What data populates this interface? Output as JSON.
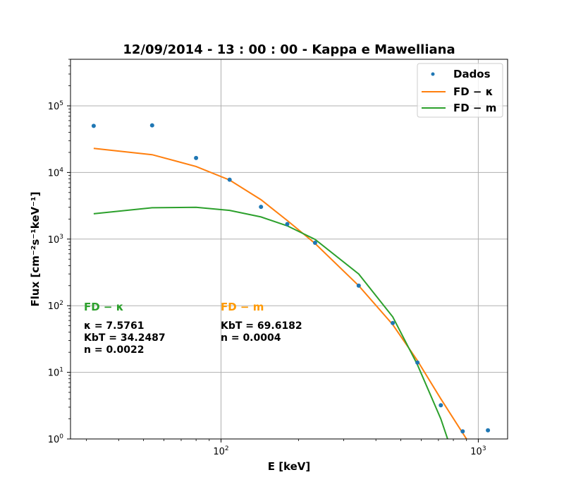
{
  "chart_data": {
    "type": "line",
    "title": "12/09/2014 - 13 : 00 : 00 - Kappa e Mawelliana",
    "xlabel": "E [keV]",
    "ylabel": "Flux [cm⁻²s⁻¹keV⁻¹]",
    "xscale": "log",
    "yscale": "log",
    "xlim": [
      26,
      1300
    ],
    "ylim": [
      1,
      500000
    ],
    "x_ticks": [
      {
        "value": 100,
        "base": "10",
        "exp": "2"
      },
      {
        "value": 1000,
        "base": "10",
        "exp": "3"
      }
    ],
    "y_ticks": [
      {
        "value": 1,
        "base": "10",
        "exp": "0"
      },
      {
        "value": 10,
        "base": "10",
        "exp": "1"
      },
      {
        "value": 100,
        "base": "10",
        "exp": "2"
      },
      {
        "value": 1000,
        "base": "10",
        "exp": "3"
      },
      {
        "value": 10000,
        "base": "10",
        "exp": "4"
      },
      {
        "value": 100000,
        "base": "10",
        "exp": "5"
      }
    ],
    "grid": true,
    "legend_position": "top-right",
    "series": [
      {
        "name": "Dados",
        "kind": "scatter",
        "color": "#1f77b4",
        "x": [
          32,
          54,
          80,
          108,
          143,
          181,
          232,
          343,
          465,
          580,
          715,
          870,
          1090
        ],
        "y": [
          50000,
          51000,
          16500,
          7800,
          3050,
          1680,
          880,
          200,
          55,
          14,
          3.2,
          1.3,
          1.35
        ]
      },
      {
        "name": "FD − κ",
        "kind": "line",
        "color": "#ff7f0e",
        "x": [
          32,
          54,
          80,
          108,
          143,
          181,
          232,
          343,
          465,
          580,
          715,
          900
        ],
        "y": [
          23000,
          18500,
          12300,
          7700,
          3900,
          1900,
          860,
          200,
          52,
          15,
          4,
          1
        ]
      },
      {
        "name": "FD − m",
        "kind": "line",
        "color": "#2ca02c",
        "x": [
          32,
          54,
          80,
          108,
          143,
          181,
          232,
          343,
          465,
          580,
          715,
          760
        ],
        "y": [
          2400,
          2950,
          3000,
          2700,
          2150,
          1580,
          990,
          300,
          68,
          13,
          2,
          1
        ]
      }
    ],
    "annotations": {
      "kappa": {
        "header": "FD − κ",
        "color": "#2ca02c",
        "lines": [
          "κ = 7.5761",
          "KbT = 34.2487",
          "n = 0.0022"
        ]
      },
      "maxwell": {
        "header": "FD − m",
        "color": "#ff9900",
        "lines": [
          "KbT = 69.6182",
          "n = 0.0004"
        ]
      }
    }
  }
}
